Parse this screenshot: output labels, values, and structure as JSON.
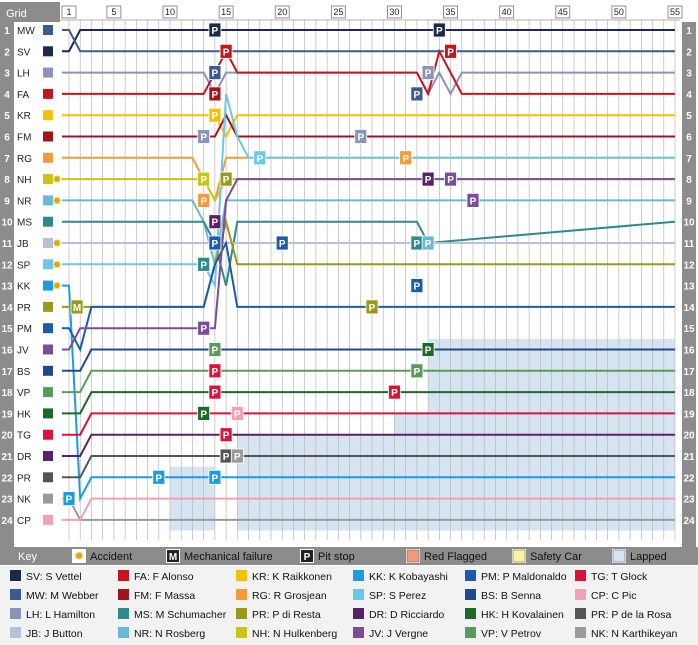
{
  "grid_label": "Grid",
  "lap_ticks": [
    "1",
    "5",
    "10",
    "15",
    "20",
    "25",
    "30",
    "35",
    "40",
    "45",
    "50",
    "55"
  ],
  "positions": [
    "1",
    "2",
    "3",
    "4",
    "5",
    "6",
    "7",
    "8",
    "9",
    "10",
    "11",
    "12",
    "13",
    "14",
    "15",
    "16",
    "17",
    "18",
    "19",
    "20",
    "21",
    "22",
    "23",
    "24"
  ],
  "grid_order": [
    {
      "code": "MW",
      "color": "#3b5b8c"
    },
    {
      "code": "SV",
      "color": "#1b2a4a"
    },
    {
      "code": "LH",
      "color": "#8b94b8"
    },
    {
      "code": "FA",
      "color": "#c8141e"
    },
    {
      "code": "KR",
      "color": "#f2c200"
    },
    {
      "code": "FM",
      "color": "#a0141c"
    },
    {
      "code": "RG",
      "color": "#f39a3a"
    },
    {
      "code": "NH",
      "color": "#c9c41a",
      "accident": true
    },
    {
      "code": "NR",
      "color": "#6bb8d6",
      "accident": true
    },
    {
      "code": "MS",
      "color": "#2f8a8a"
    },
    {
      "code": "JB",
      "color": "#b8c0d8",
      "accident": true
    },
    {
      "code": "SP",
      "color": "#6cc8e8",
      "accident": true
    },
    {
      "code": "KK",
      "color": "#1b9be0",
      "accident": true
    },
    {
      "code": "PR",
      "color": "#9a9a1a"
    },
    {
      "code": "PM",
      "color": "#1b5ca8"
    },
    {
      "code": "JV",
      "color": "#7a4c9a"
    },
    {
      "code": "BS",
      "color": "#1e4a8c"
    },
    {
      "code": "VP",
      "color": "#5a9a5a"
    },
    {
      "code": "HK",
      "color": "#1a6a2a"
    },
    {
      "code": "TG",
      "color": "#d8143c"
    },
    {
      "code": "DR",
      "color": "#5a2068"
    },
    {
      "code": "PR",
      "color": "#555555"
    },
    {
      "code": "NK",
      "color": "#9a9a9a"
    },
    {
      "code": "CP",
      "color": "#f2a0b4"
    }
  ],
  "key": {
    "label": "Key",
    "items": [
      "Accident",
      "Mechanical failure",
      "Pit stop",
      "Red Flagged",
      "Safety Car",
      "Lapped"
    ],
    "mechanical_glyph": "M",
    "pit_glyph": "P"
  },
  "legend": [
    {
      "label": "SV: S Vettel",
      "color": "#1b2a4a"
    },
    {
      "label": "FA: F Alonso",
      "color": "#c8141e"
    },
    {
      "label": "KR: K Raikkonen",
      "color": "#f2c200"
    },
    {
      "label": "KK: K Kobayashi",
      "color": "#1b9be0"
    },
    {
      "label": "PM: P Maldonaldo",
      "color": "#1b5ca8"
    },
    {
      "label": "TG: T Glock",
      "color": "#d8143c"
    },
    {
      "label": "MW: M Webber",
      "color": "#3b5b8c"
    },
    {
      "label": "FM: F Massa",
      "color": "#a0141c"
    },
    {
      "label": "RG: R Grosjean",
      "color": "#f39a3a"
    },
    {
      "label": "SP: S Perez",
      "color": "#6cc8e8"
    },
    {
      "label": "BS: B Senna",
      "color": "#1e4a8c"
    },
    {
      "label": "CP: C Pic",
      "color": "#f2a0b4"
    },
    {
      "label": "LH: L Hamilton",
      "color": "#8b94b8"
    },
    {
      "label": "MS: M Schumacher",
      "color": "#2f8a8a"
    },
    {
      "label": "PR: P di Resta",
      "color": "#9a9a1a"
    },
    {
      "label": "DR: D Ricciardo",
      "color": "#5a2068"
    },
    {
      "label": "HK: H Kovalainen",
      "color": "#1a6a2a"
    },
    {
      "label": "PR: P de la Rosa",
      "color": "#555555"
    },
    {
      "label": "JB: J Button",
      "color": "#b8c0d8"
    },
    {
      "label": "NR: N Rosberg",
      "color": "#6bb8d6"
    },
    {
      "label": "NH: N Hulkenberg",
      "color": "#c9c41a"
    },
    {
      "label": "JV: J Vergne",
      "color": "#7a4c9a"
    },
    {
      "label": "VP: V Petrov",
      "color": "#5a9a5a"
    },
    {
      "label": "NK: N Karthikeyan",
      "color": "#9a9a9a"
    }
  ],
  "colors": {
    "sidebar": "#8c8c8c",
    "lapped": "#d6e4f2",
    "red_flag": "#f29a7a",
    "safety_car": "#fff3a0",
    "grid_line": "#b8b8b8"
  },
  "chart_data": {
    "type": "line",
    "x_range": [
      1,
      55
    ],
    "y_range": [
      1,
      24
    ],
    "series": [
      {
        "name": "SV",
        "color": "#1b2a4a",
        "x": [
          0,
          1,
          2,
          55
        ],
        "y": [
          2,
          2,
          1,
          1
        ]
      },
      {
        "name": "MW",
        "color": "#3b5b8c",
        "x": [
          0,
          1,
          2,
          14,
          15,
          34,
          35,
          55
        ],
        "y": [
          1,
          1,
          2,
          2,
          2,
          2,
          2,
          2
        ]
      },
      {
        "name": "LH",
        "color": "#8b94b8",
        "x": [
          0,
          13,
          14,
          15,
          16,
          32,
          33,
          34,
          35,
          36,
          55
        ],
        "y": [
          3,
          3,
          4,
          3,
          3,
          3,
          4,
          3,
          4,
          3,
          3
        ]
      },
      {
        "name": "FA",
        "color": "#c8141e",
        "x": [
          0,
          13,
          14,
          15,
          16,
          32,
          33,
          34,
          35,
          36,
          55
        ],
        "y": [
          4,
          4,
          3,
          2,
          3,
          3,
          4,
          2,
          3,
          4,
          4
        ]
      },
      {
        "name": "KR",
        "color": "#f2c200",
        "x": [
          0,
          13,
          14,
          15,
          16,
          34,
          35,
          36,
          55
        ],
        "y": [
          5,
          5,
          5,
          6,
          5,
          5,
          5,
          5,
          5
        ]
      },
      {
        "name": "FM",
        "color": "#a0141c",
        "x": [
          0,
          13,
          14,
          15,
          16,
          55
        ],
        "y": [
          6,
          6,
          6,
          5,
          6,
          6
        ]
      },
      {
        "name": "RG",
        "color": "#f39a3a",
        "x": [
          0,
          12,
          13,
          14,
          15,
          30,
          31,
          55
        ],
        "y": [
          7,
          7,
          8,
          9,
          7,
          7,
          7,
          7
        ]
      },
      {
        "name": "NH",
        "color": "#c9c41a",
        "x": [
          0,
          12,
          13,
          14,
          15,
          16,
          55
        ],
        "y": [
          8,
          8,
          8,
          9,
          8,
          8,
          8
        ]
      },
      {
        "name": "NR",
        "color": "#6bb8d6",
        "x": [
          0,
          1,
          2,
          12,
          13,
          14,
          15,
          16,
          55
        ],
        "y": [
          9,
          9,
          9,
          9,
          10,
          12,
          9,
          9,
          9
        ]
      },
      {
        "name": "MS",
        "color": "#2f8a8a",
        "x": [
          0,
          1,
          2,
          13,
          14,
          15,
          16,
          32,
          33,
          55
        ],
        "y": [
          10,
          10,
          10,
          10,
          11,
          13,
          10,
          10,
          11,
          10
        ]
      },
      {
        "name": "JB",
        "color": "#b8c0d8",
        "x": [
          0,
          1,
          2,
          10,
          11,
          34,
          35,
          55
        ],
        "y": [
          11,
          11,
          11,
          11,
          11,
          11,
          11,
          11
        ]
      },
      {
        "name": "SP",
        "color": "#6cc8e8",
        "x": [
          0,
          1,
          2,
          13,
          14,
          15,
          16,
          17,
          18,
          55
        ],
        "y": [
          12,
          12,
          12,
          12,
          13,
          4,
          6,
          7,
          7,
          7
        ]
      },
      {
        "name": "KK",
        "color": "#1b9be0",
        "x": [
          0,
          1,
          2,
          3,
          6,
          7,
          12,
          13,
          14,
          15,
          55
        ],
        "y": [
          13,
          13,
          23,
          22,
          22,
          22,
          22,
          22,
          22,
          22,
          22
        ]
      },
      {
        "name": "PR",
        "color": "#9a9a1a",
        "x": [
          0,
          1,
          2,
          13,
          14,
          15,
          16,
          55
        ],
        "y": [
          14,
          14,
          14,
          14,
          12,
          10,
          12,
          12
        ]
      },
      {
        "name": "PM",
        "color": "#1b5ca8",
        "x": [
          0,
          1,
          2,
          3,
          13,
          14,
          15,
          16,
          55
        ],
        "y": [
          15,
          15,
          16,
          14,
          14,
          12,
          11,
          14,
          14
        ]
      },
      {
        "name": "JV",
        "color": "#7a4c9a",
        "x": [
          0,
          1,
          2,
          3,
          13,
          14,
          15,
          16,
          55
        ],
        "y": [
          16,
          16,
          15,
          15,
          15,
          15,
          9,
          8,
          8
        ]
      },
      {
        "name": "BS",
        "color": "#1e4a8c",
        "x": [
          0,
          1,
          2,
          3,
          14,
          15,
          16,
          55
        ],
        "y": [
          17,
          17,
          17,
          16,
          16,
          16,
          16,
          16
        ]
      },
      {
        "name": "VP",
        "color": "#5a9a5a",
        "x": [
          0,
          1,
          2,
          3,
          14,
          15,
          16,
          55
        ],
        "y": [
          18,
          18,
          18,
          17,
          17,
          17,
          17,
          17
        ]
      },
      {
        "name": "HK",
        "color": "#1a6a2a",
        "x": [
          0,
          1,
          2,
          3,
          14,
          15,
          16,
          55
        ],
        "y": [
          19,
          19,
          19,
          18,
          18,
          18,
          18,
          18
        ]
      },
      {
        "name": "TG",
        "color": "#d8143c",
        "x": [
          0,
          1,
          2,
          3,
          14,
          15,
          16,
          55
        ],
        "y": [
          20,
          20,
          20,
          19,
          19,
          19,
          19,
          19
        ]
      },
      {
        "name": "DR",
        "color": "#5a2068",
        "x": [
          0,
          1,
          2,
          3,
          14,
          15,
          16,
          55
        ],
        "y": [
          21,
          21,
          21,
          20,
          20,
          20,
          20,
          20
        ]
      },
      {
        "name": "PR",
        "color": "#555555",
        "x": [
          0,
          1,
          2,
          3,
          14,
          15,
          16,
          55
        ],
        "y": [
          22,
          22,
          22,
          21,
          21,
          21,
          21,
          21
        ]
      },
      {
        "name": "NK",
        "color": "#9a9a9a",
        "x": [
          0,
          1,
          2,
          3,
          14,
          15,
          16,
          55
        ],
        "y": [
          23,
          23,
          24,
          24,
          24,
          24,
          24,
          24
        ]
      },
      {
        "name": "CP",
        "color": "#f2a0b4",
        "x": [
          0,
          1,
          2,
          3,
          55
        ],
        "y": [
          24,
          24,
          24,
          23,
          23
        ]
      }
    ],
    "pit_stops": [
      {
        "lap": 14,
        "pos": 1,
        "color": "#1b2a4a"
      },
      {
        "lap": 34,
        "pos": 1,
        "color": "#1b2a4a"
      },
      {
        "lap": 15,
        "pos": 2,
        "color": "#c8141e"
      },
      {
        "lap": 35,
        "pos": 2,
        "color": "#c8141e"
      },
      {
        "lap": 14,
        "pos": 3,
        "color": "#3b5b8c"
      },
      {
        "lap": 33,
        "pos": 3,
        "color": "#8b94b8"
      },
      {
        "lap": 14,
        "pos": 4,
        "color": "#a0141c"
      },
      {
        "lap": 32,
        "pos": 4,
        "color": "#3b5b8c"
      },
      {
        "lap": 14,
        "pos": 5,
        "color": "#f2c200"
      },
      {
        "lap": 13,
        "pos": 6,
        "color": "#8b94b8"
      },
      {
        "lap": 27,
        "pos": 6,
        "color": "#8b94b8"
      },
      {
        "lap": 18,
        "pos": 7,
        "color": "#6cc8e8"
      },
      {
        "lap": 31,
        "pos": 7,
        "color": "#f39a3a"
      },
      {
        "lap": 13,
        "pos": 8,
        "color": "#c9c41a"
      },
      {
        "lap": 15,
        "pos": 8,
        "color": "#9a9a1a"
      },
      {
        "lap": 33,
        "pos": 8,
        "color": "#5a2068"
      },
      {
        "lap": 35,
        "pos": 8,
        "color": "#7a4c9a"
      },
      {
        "lap": 13,
        "pos": 9,
        "color": "#f39a3a"
      },
      {
        "lap": 37,
        "pos": 9,
        "color": "#7a4c9a"
      },
      {
        "lap": 14,
        "pos": 10,
        "color": "#5a2068"
      },
      {
        "lap": 14,
        "pos": 11,
        "color": "#1b5ca8"
      },
      {
        "lap": 20,
        "pos": 11,
        "color": "#1b5ca8"
      },
      {
        "lap": 32,
        "pos": 11,
        "color": "#2f8a8a"
      },
      {
        "lap": 33,
        "pos": 11,
        "color": "#6bb8d6"
      },
      {
        "lap": 13,
        "pos": 12,
        "color": "#2f8a8a"
      },
      {
        "lap": 32,
        "pos": 13,
        "color": "#1b5ca8"
      },
      {
        "lap": 28,
        "pos": 14,
        "color": "#9a9a1a"
      },
      {
        "lap": 13,
        "pos": 15,
        "color": "#7a4c9a"
      },
      {
        "lap": 14,
        "pos": 16,
        "color": "#5a9a5a"
      },
      {
        "lap": 33,
        "pos": 16,
        "color": "#1a6a2a"
      },
      {
        "lap": 14,
        "pos": 17,
        "color": "#d8143c"
      },
      {
        "lap": 32,
        "pos": 17,
        "color": "#5a9a5a"
      },
      {
        "lap": 14,
        "pos": 18,
        "color": "#d8143c"
      },
      {
        "lap": 30,
        "pos": 18,
        "color": "#d8143c"
      },
      {
        "lap": 13,
        "pos": 19,
        "color": "#1a6a2a"
      },
      {
        "lap": 16,
        "pos": 19,
        "color": "#f2a0b4"
      },
      {
        "lap": 15,
        "pos": 20,
        "color": "#d8143c"
      },
      {
        "lap": 15,
        "pos": 21,
        "color": "#555555"
      },
      {
        "lap": 16,
        "pos": 21,
        "color": "#9a9a9a"
      },
      {
        "lap": 9,
        "pos": 22,
        "color": "#1b9be0"
      },
      {
        "lap": 14,
        "pos": 22,
        "color": "#1b9be0"
      },
      {
        "lap": 1,
        "pos": 23,
        "color": "#1b9be0"
      }
    ],
    "mechanical_failures": [
      {
        "lap": 1,
        "pos": 14,
        "color": "#9a9a1a"
      }
    ],
    "lapped_regions": [
      {
        "from_lap": 10,
        "to_lap": 14,
        "from_pos": 21.5,
        "to_pos": 24.5
      },
      {
        "from_lap": 16,
        "to_lap": 30,
        "from_pos": 20,
        "to_pos": 24.5
      },
      {
        "from_lap": 30,
        "to_lap": 37,
        "from_pos": 19,
        "to_pos": 24.5
      },
      {
        "from_lap": 33,
        "to_lap": 55,
        "from_pos": 15.5,
        "to_pos": 24.5
      }
    ]
  }
}
